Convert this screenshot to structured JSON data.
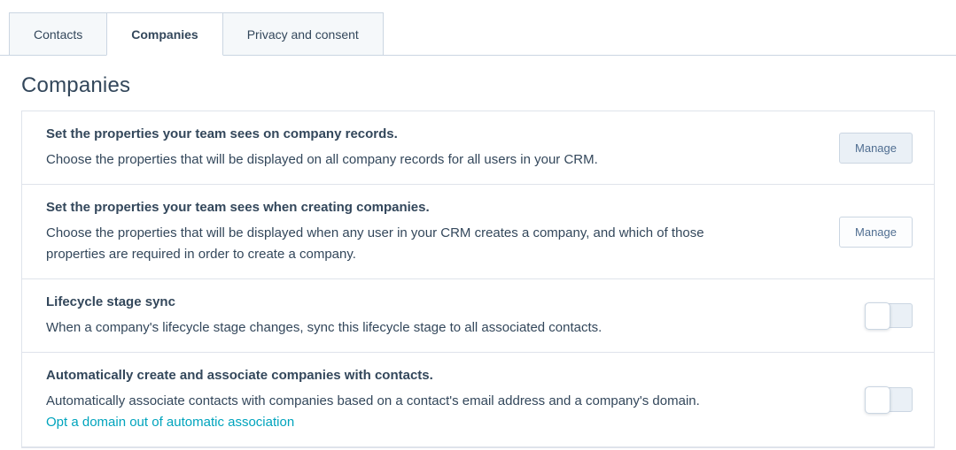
{
  "tabs": {
    "items": [
      {
        "label": "Contacts",
        "active": false
      },
      {
        "label": "Companies",
        "active": true
      },
      {
        "label": "Privacy and consent",
        "active": false
      }
    ]
  },
  "page_title": "Companies",
  "settings": {
    "rows": [
      {
        "title": "Set the properties your team sees on company records.",
        "description": "Choose the properties that will be displayed on all company records for all users in your CRM.",
        "action_label": "Manage"
      },
      {
        "title": "Set the properties your team sees when creating companies.",
        "description": "Choose the properties that will be displayed when any user in your CRM creates a company, and which of those properties are required in order to create a company.",
        "action_label": "Manage"
      },
      {
        "title": "Lifecycle stage sync",
        "description": "When a company's lifecycle stage changes, sync this lifecycle stage to all associated contacts.",
        "toggle_state": "off"
      },
      {
        "title": "Automatically create and associate companies with contacts.",
        "description": "Automatically associate contacts with companies based on a contact's email address and a company's domain.",
        "link_label": "Opt a domain out of automatic association",
        "toggle_state": "off"
      }
    ]
  },
  "colors": {
    "text": "#33475b",
    "link": "#00a4bd",
    "tab-bg": "#f5f8fa",
    "tab-border": "#cbd6e2",
    "panel-border": "#dfe3eb",
    "button-bg": "#eaf0f6",
    "button-bg-alt": "#fcfdfe",
    "button-border": "#cbd6e2",
    "button-text": "#506e91",
    "toggle-track": "#eaf0f6",
    "toggle-border": "#cbd6e2"
  }
}
